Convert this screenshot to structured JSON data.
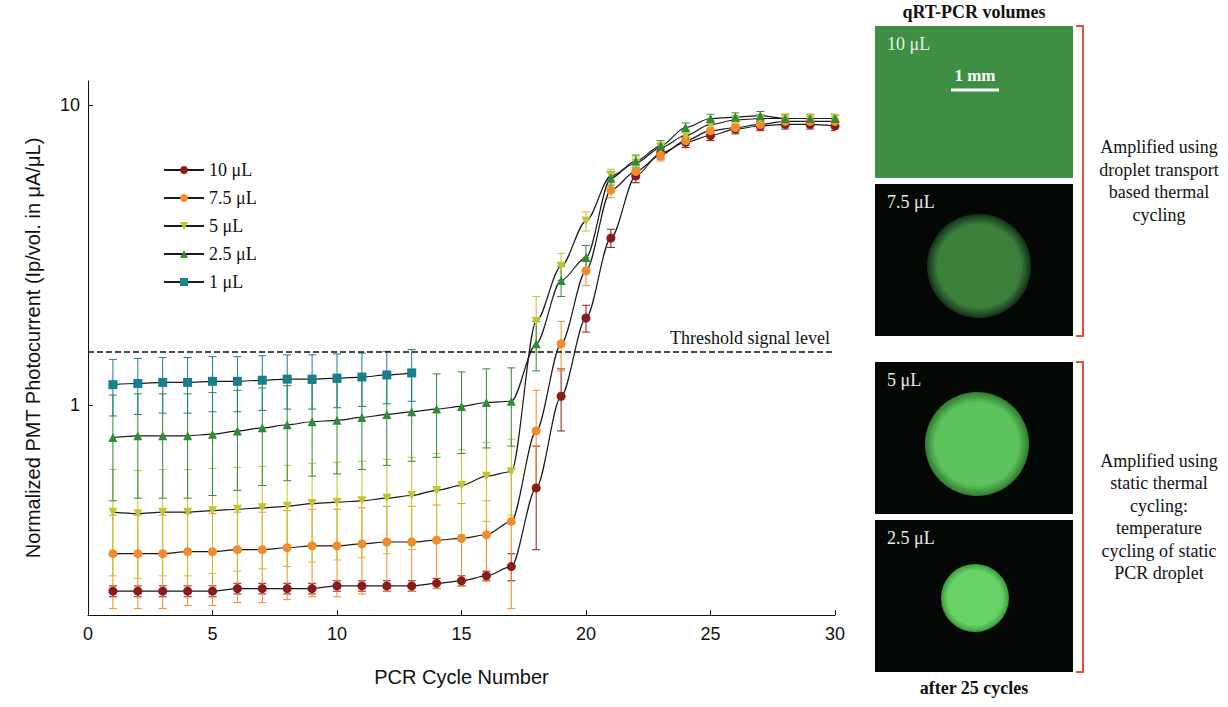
{
  "chart_data": {
    "type": "line",
    "log": "y",
    "x_label": "PCR Cycle Number",
    "y_label": "Normalized PMT Photocurrent (Ip/vol. in μA/μL)",
    "x": [
      1,
      2,
      3,
      4,
      5,
      6,
      7,
      8,
      9,
      10,
      11,
      12,
      13,
      14,
      15,
      16,
      17,
      18,
      19,
      20,
      21,
      22,
      23,
      24,
      25,
      26,
      27,
      28,
      29,
      30
    ],
    "xlim": [
      0,
      30
    ],
    "xticks": [
      0,
      5,
      10,
      15,
      20,
      25,
      30
    ],
    "ylim": [
      0.2,
      12
    ],
    "yticks": [
      1,
      10
    ],
    "grid": false,
    "legend": "upper left",
    "threshold": {
      "value": 1.5,
      "label": "Threshold signal level"
    },
    "series": [
      {
        "name": "10 μL",
        "color": "#8b1a1a",
        "marker": "circle",
        "values": [
          0.24,
          0.24,
          0.24,
          0.24,
          0.24,
          0.245,
          0.245,
          0.245,
          0.245,
          0.25,
          0.25,
          0.25,
          0.25,
          0.255,
          0.26,
          0.27,
          0.29,
          0.53,
          1.07,
          1.95,
          3.6,
          5.8,
          6.9,
          7.5,
          7.9,
          8.3,
          8.5,
          8.6,
          8.6,
          8.5
        ],
        "errors": [
          0.01,
          0.01,
          0.01,
          0.01,
          0.01,
          0.01,
          0.01,
          0.01,
          0.01,
          0.01,
          0.01,
          0.01,
          0.01,
          0.01,
          0.01,
          0.01,
          0.03,
          0.2,
          0.25,
          0.2,
          0.25,
          0.3,
          0.3,
          0.3,
          0.3,
          0.3,
          0.3,
          0.3,
          0.3,
          0.3
        ]
      },
      {
        "name": "7.5 μL",
        "color": "#f28c28",
        "marker": "circle",
        "values": [
          0.32,
          0.32,
          0.32,
          0.325,
          0.325,
          0.33,
          0.33,
          0.335,
          0.34,
          0.34,
          0.345,
          0.35,
          0.35,
          0.355,
          0.36,
          0.37,
          0.41,
          0.82,
          1.6,
          2.8,
          5.2,
          6.0,
          6.8,
          7.6,
          8.2,
          8.4,
          8.6,
          8.8,
          8.8,
          8.8
        ],
        "errors": [
          0.11,
          0.11,
          0.11,
          0.11,
          0.11,
          0.11,
          0.11,
          0.11,
          0.11,
          0.11,
          0.11,
          0.11,
          0.11,
          0.11,
          0.11,
          0.11,
          0.2,
          0.3,
          0.3,
          0.3,
          0.3,
          0.3,
          0.3,
          0.3,
          0.3,
          0.3,
          0.3,
          0.3,
          0.3,
          0.3
        ]
      },
      {
        "name": "5 μL",
        "color": "#c4c42e",
        "marker": "triangle_down",
        "values": [
          0.44,
          0.435,
          0.44,
          0.44,
          0.445,
          0.45,
          0.455,
          0.46,
          0.47,
          0.475,
          0.48,
          0.49,
          0.5,
          0.52,
          0.54,
          0.58,
          0.6,
          1.9,
          2.9,
          4.1,
          5.8,
          6.4,
          7.2,
          7.9,
          8.6,
          8.9,
          9.0,
          9.0,
          9.0,
          9.0
        ],
        "errors": [
          0.17,
          0.17,
          0.17,
          0.17,
          0.17,
          0.17,
          0.17,
          0.17,
          0.17,
          0.17,
          0.17,
          0.17,
          0.17,
          0.17,
          0.17,
          0.17,
          0.17,
          0.4,
          0.3,
          0.3,
          0.3,
          0.3,
          0.3,
          0.3,
          0.3,
          0.3,
          0.3,
          0.3,
          0.3,
          0.3
        ]
      },
      {
        "name": "2.5 μL",
        "color": "#2e8b3a",
        "marker": "triangle",
        "values": [
          0.78,
          0.79,
          0.79,
          0.79,
          0.8,
          0.82,
          0.84,
          0.86,
          0.88,
          0.89,
          0.91,
          0.93,
          0.95,
          0.97,
          0.99,
          1.02,
          1.03,
          1.6,
          2.6,
          3.1,
          5.7,
          6.5,
          7.3,
          8.4,
          9.0,
          9.1,
          9.2,
          9.0,
          9.0,
          9.0
        ],
        "errors": [
          0.3,
          0.3,
          0.3,
          0.3,
          0.3,
          0.3,
          0.3,
          0.3,
          0.3,
          0.3,
          0.3,
          0.3,
          0.3,
          0.3,
          0.3,
          0.3,
          0.3,
          0.3,
          0.3,
          0.3,
          0.3,
          0.3,
          0.3,
          0.3,
          0.3,
          0.3,
          0.3,
          0.3,
          0.3,
          0.3
        ]
      },
      {
        "name": "1 μL",
        "color": "#1a7f8c",
        "marker": "square",
        "values": [
          1.17,
          1.18,
          1.19,
          1.19,
          1.2,
          1.2,
          1.21,
          1.22,
          1.22,
          1.23,
          1.24,
          1.26,
          1.28,
          null,
          null,
          null,
          null,
          null,
          null,
          null,
          null,
          null,
          null,
          null,
          null,
          null,
          null,
          null,
          null,
          null
        ],
        "errors": [
          0.25,
          0.25,
          0.25,
          0.25,
          0.25,
          0.25,
          0.25,
          0.25,
          0.25,
          0.25,
          0.25,
          0.25,
          0.25,
          null,
          null,
          null,
          null,
          null,
          null,
          null,
          null,
          null,
          null,
          null,
          null,
          null,
          null,
          null,
          null,
          null
        ]
      }
    ]
  },
  "side_panel": {
    "title": "qRT-PCR volumes",
    "scale_bar": "1 mm",
    "caption": "after 25 cycles",
    "groups": [
      {
        "text": "Amplified using droplet transport based thermal cycling",
        "images": [
          "10 μL",
          "7.5 μL"
        ]
      },
      {
        "text": "Amplified using static thermal cycling: temperature cycling of static PCR droplet",
        "images": [
          "5 μL",
          "2.5 μL"
        ]
      }
    ]
  }
}
